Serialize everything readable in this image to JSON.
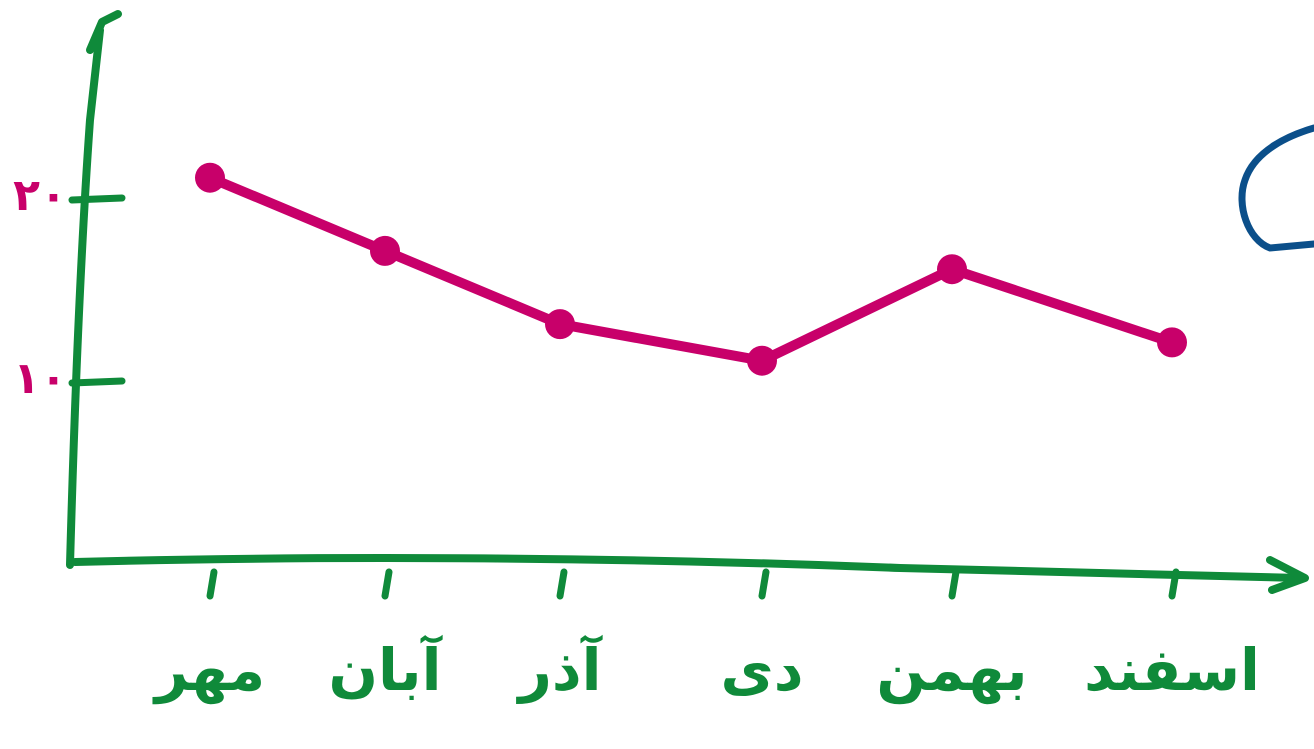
{
  "chart_data": {
    "type": "line",
    "categories": [
      "مهر",
      "آبان",
      "آذر",
      "دی",
      "بهمن",
      "اسفند"
    ],
    "series": [
      {
        "values": [
          21,
          17,
          13,
          11,
          16,
          12
        ]
      }
    ],
    "y_ticks": [
      {
        "value": 10,
        "label": "۱۰"
      },
      {
        "value": 20,
        "label": "۲۰"
      }
    ],
    "ylim": [
      0,
      27
    ],
    "grid": false,
    "colors": {
      "axis": "#0f8a3a",
      "line": "#c8006a",
      "tick_label": "#c8006a",
      "category_label": "#0f8a3a",
      "stray_stroke": "#0b4f8a"
    }
  }
}
